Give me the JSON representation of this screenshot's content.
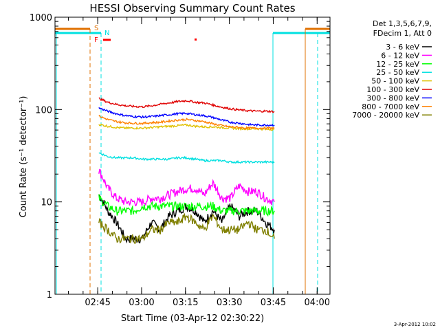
{
  "chart_data": {
    "type": "line",
    "title": "HESSI Observing Summary Count Rates",
    "xlabel": "Start Time (03-Apr-12 02:30:22)",
    "ylabel": "Count Rate (s⁻¹ detector⁻¹)",
    "y_scale": "log",
    "ylim": [
      1,
      1000
    ],
    "xlim_minutes_after_start": [
      0,
      94
    ],
    "x_tick_labels": [
      "02:45",
      "03:00",
      "03:15",
      "03:30",
      "03:45",
      "04:00"
    ],
    "x_tick_minutes": [
      14.6,
      29.6,
      44.6,
      59.6,
      74.6,
      89.6
    ],
    "y_tick_labels": [
      "1",
      "10",
      "100",
      "1000"
    ],
    "y_tick_values": [
      1,
      10,
      100,
      1000
    ],
    "legend_header": [
      "Det 1,3,5,6,7,9,",
      "FDecim 1, Att 0"
    ],
    "legend_position": "right",
    "date_stamp": "3-Apr-2012 10:02",
    "flags": [
      {
        "label": "S",
        "color": "#e07000"
      },
      {
        "label": "N",
        "color": "#00e0e0"
      },
      {
        "label": "F",
        "color": "#ff0000"
      }
    ],
    "series": [
      {
        "name": "3 - 6 keV",
        "color": "#000000",
        "x": [
          15,
          18,
          21,
          24,
          27,
          30,
          33,
          36,
          39,
          42,
          45,
          48,
          51,
          54,
          57,
          60,
          63,
          66,
          69,
          72,
          75
        ],
        "y": [
          12,
          8,
          6,
          4,
          4,
          4,
          6,
          5,
          7,
          8,
          9,
          8,
          6,
          8,
          6,
          9,
          7,
          8,
          8,
          6,
          5
        ]
      },
      {
        "name": "6 - 12 keV",
        "color": "#ff00ff",
        "x": [
          15,
          18,
          21,
          24,
          27,
          30,
          33,
          36,
          39,
          42,
          45,
          48,
          51,
          54,
          57,
          60,
          63,
          66,
          69,
          72,
          75
        ],
        "y": [
          22,
          14,
          11,
          10,
          10,
          10,
          11,
          11,
          12,
          13,
          14,
          14,
          12,
          16,
          11,
          11,
          15,
          13,
          13,
          11,
          10
        ]
      },
      {
        "name": "12 - 25 keV",
        "color": "#00ff00",
        "x": [
          15,
          18,
          21,
          24,
          27,
          30,
          33,
          36,
          39,
          42,
          45,
          48,
          51,
          54,
          57,
          60,
          63,
          66,
          69,
          72,
          75
        ],
        "y": [
          11,
          9,
          8,
          8,
          8,
          9,
          9,
          9,
          9,
          9,
          9,
          9,
          9,
          9,
          8,
          8,
          8,
          8,
          8,
          8,
          8
        ]
      },
      {
        "name": "25 - 50 keV",
        "color": "#00e0e0",
        "x": [
          15,
          18,
          21,
          24,
          27,
          30,
          33,
          36,
          39,
          42,
          45,
          48,
          51,
          54,
          57,
          60,
          63,
          66,
          69,
          72,
          75
        ],
        "y": [
          34,
          31,
          30,
          30,
          30,
          29,
          29,
          29,
          29,
          30,
          30,
          29,
          28,
          28,
          28,
          27,
          27,
          27,
          27,
          27,
          27
        ]
      },
      {
        "name": "50 - 100 keV",
        "color": "#e0c000",
        "x": [
          15,
          18,
          21,
          24,
          27,
          30,
          33,
          36,
          39,
          42,
          45,
          48,
          51,
          54,
          57,
          60,
          63,
          66,
          69,
          72,
          75
        ],
        "y": [
          69,
          66,
          64,
          63,
          63,
          63,
          64,
          65,
          66,
          67,
          68,
          66,
          65,
          65,
          64,
          63,
          62,
          62,
          62,
          61,
          61
        ]
      },
      {
        "name": "100 - 300 keV",
        "color": "#e00000",
        "x": [
          15,
          18,
          21,
          24,
          27,
          30,
          33,
          36,
          39,
          42,
          45,
          48,
          51,
          54,
          57,
          60,
          63,
          66,
          69,
          72,
          75
        ],
        "y": [
          132,
          120,
          114,
          110,
          108,
          107,
          110,
          114,
          118,
          122,
          125,
          120,
          118,
          112,
          106,
          102,
          99,
          97,
          96,
          96,
          95
        ]
      },
      {
        "name": "300 - 800 keV",
        "color": "#0000ff",
        "x": [
          15,
          18,
          21,
          24,
          27,
          30,
          33,
          36,
          39,
          42,
          45,
          48,
          51,
          54,
          57,
          60,
          63,
          66,
          69,
          72,
          75
        ],
        "y": [
          104,
          96,
          90,
          86,
          84,
          83,
          84,
          86,
          88,
          90,
          91,
          88,
          86,
          82,
          77,
          73,
          71,
          69,
          68,
          68,
          68
        ]
      },
      {
        "name": "800 - 7000 keV",
        "color": "#ff8000",
        "x": [
          15,
          18,
          21,
          24,
          27,
          30,
          33,
          36,
          39,
          42,
          45,
          48,
          51,
          54,
          57,
          60,
          63,
          66,
          69,
          72,
          75
        ],
        "y": [
          85,
          78,
          74,
          72,
          71,
          71,
          72,
          73,
          75,
          77,
          78,
          76,
          74,
          70,
          67,
          65,
          64,
          63,
          63,
          63,
          63
        ]
      },
      {
        "name": "7000 - 20000 keV",
        "color": "#808000",
        "x": [
          15,
          18,
          21,
          24,
          27,
          30,
          33,
          36,
          39,
          42,
          45,
          48,
          51,
          54,
          57,
          60,
          63,
          66,
          69,
          72,
          75
        ],
        "y": [
          6,
          5,
          4,
          4,
          4,
          4,
          5,
          5,
          6,
          6,
          7,
          6,
          5,
          7,
          5,
          5,
          5,
          6,
          5,
          5,
          4
        ]
      }
    ]
  }
}
